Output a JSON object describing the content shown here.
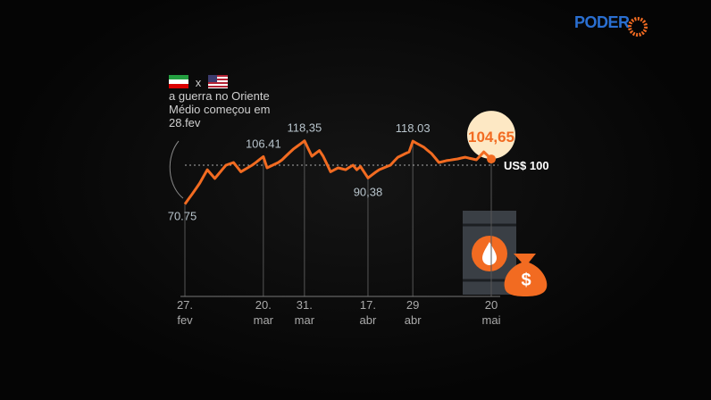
{
  "brand": "PODER",
  "chart_data": {
    "type": "line",
    "annotation": "a guerra no Oriente Médio começou em 28.fev",
    "versus": "x",
    "icon_text": "$",
    "categories": [
      "27.\nfev",
      null,
      null,
      null,
      null,
      null,
      null,
      null,
      null,
      null,
      null,
      null,
      null,
      null,
      null,
      null,
      null,
      null,
      null,
      null,
      null,
      "20.\nmar",
      null,
      null,
      null,
      null,
      null,
      null,
      null,
      null,
      null,
      null,
      "31.\nmar",
      null,
      null,
      null,
      null,
      null,
      null,
      null,
      null,
      null,
      null,
      null,
      null,
      null,
      null,
      null,
      null,
      "17.\nabr",
      null,
      null,
      null,
      null,
      null,
      null,
      null,
      null,
      null,
      null,
      null,
      "29\nabr",
      null,
      null,
      null,
      null,
      null,
      null,
      null,
      null,
      null,
      null,
      null,
      null,
      null,
      null,
      null,
      null,
      null,
      null,
      null,
      null,
      "20\nmai"
    ],
    "series": [
      {
        "color": "#f26b21",
        "values": [
          70.75,
          74.6,
          78.5,
          82.5,
          86.6,
          91.6,
          96.6,
          93.3,
          90,
          93.3,
          96.7,
          100,
          101,
          102,
          98.5,
          95,
          96.7,
          98.3,
          100,
          102.1,
          104.3,
          106.41,
          98,
          99.3,
          100.7,
          102,
          104,
          106.7,
          109.4,
          112,
          114.1,
          116.2,
          118.35,
          112.5,
          106.7,
          108.9,
          111,
          106.7,
          100.9,
          95,
          96.5,
          98,
          97.3,
          96.6,
          98.3,
          100,
          96.6,
          99,
          94.7,
          90.38,
          92.5,
          94.6,
          96.6,
          97.7,
          98.9,
          100,
          103,
          106,
          107.3,
          108.7,
          110,
          118.03,
          116.5,
          115,
          113.4,
          111,
          108.7,
          105.4,
          102,
          102.7,
          103.4,
          103.8,
          104.3,
          104.7,
          105.4,
          106,
          105.3,
          104.7,
          104,
          107,
          110,
          107.3,
          104.65
        ],
        "value_labels": [
          "70.75",
          null,
          null,
          null,
          null,
          null,
          null,
          null,
          null,
          null,
          null,
          null,
          null,
          null,
          null,
          null,
          null,
          null,
          null,
          null,
          null,
          "106.41",
          null,
          null,
          null,
          null,
          null,
          null,
          null,
          null,
          null,
          null,
          "118,35",
          null,
          null,
          null,
          null,
          null,
          null,
          null,
          null,
          null,
          null,
          null,
          null,
          null,
          null,
          null,
          null,
          "90,38",
          null,
          null,
          null,
          null,
          null,
          null,
          null,
          null,
          null,
          null,
          null,
          "118.03",
          null,
          null,
          null,
          null,
          null,
          null,
          null,
          null,
          null,
          null,
          null,
          null,
          null,
          null,
          null,
          null,
          null,
          null,
          null,
          null,
          "104,65"
        ]
      }
    ],
    "reference_line": {
      "value": 100,
      "label": "US$ 100"
    },
    "ylim": [
      60,
      130
    ]
  }
}
